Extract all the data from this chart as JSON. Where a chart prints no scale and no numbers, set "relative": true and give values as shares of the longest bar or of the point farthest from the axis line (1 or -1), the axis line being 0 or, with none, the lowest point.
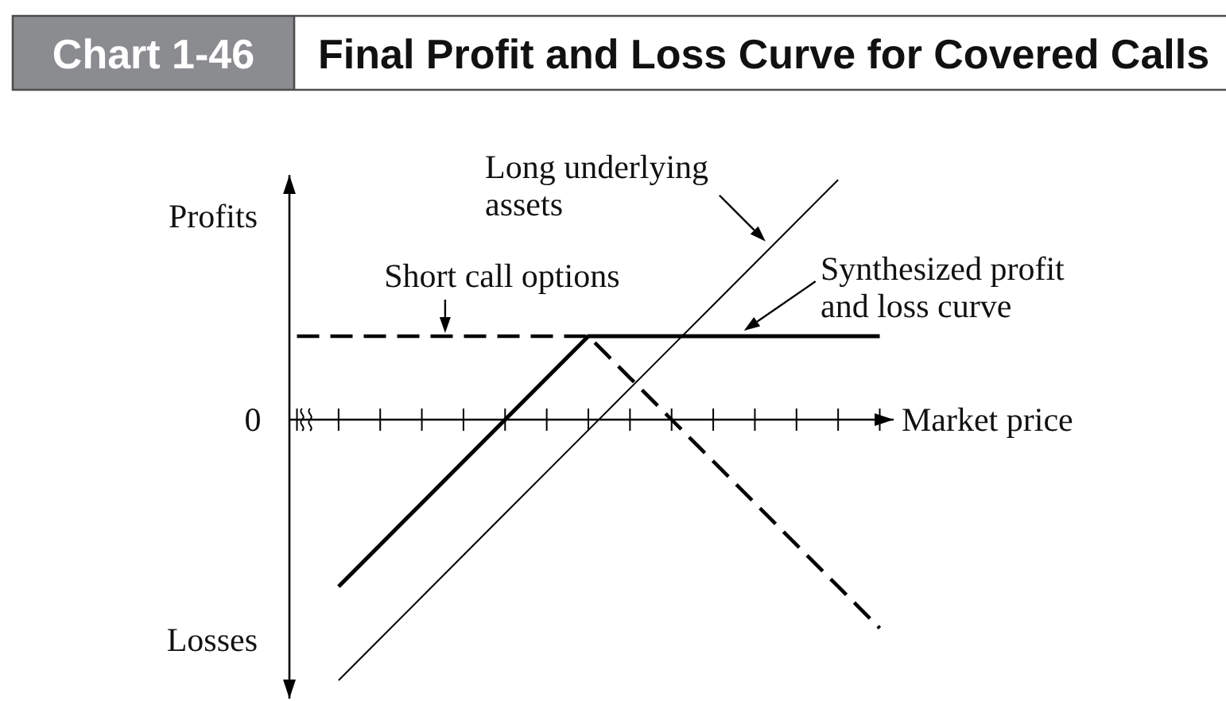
{
  "chart_data": {
    "type": "line",
    "title": "Final Profit and Loss Curve for Covered Calls",
    "xlabel": "Market price",
    "annotations": [
      "Chart 1-46",
      "Profits",
      "0",
      "Losses"
    ],
    "categories": [
      null,
      null,
      null,
      null,
      null,
      null,
      null,
      null,
      null,
      null,
      null,
      null,
      null,
      null,
      null
    ],
    "relative": true,
    "line_style": "solid",
    "series": [
      {
        "name": "Long underlying assets",
        "color": "#000000",
        "values": [
          null,
          -1,
          -0.84,
          -0.68,
          -0.52,
          -0.36,
          -0.2,
          -0.04,
          0.12,
          0.28,
          0.44,
          0.6,
          0.76,
          0.92,
          null
        ]
      },
      {
        "name": "Short call options",
        "color": "#000000",
        "line_style": "dashed",
        "values": [
          0.32,
          0.32,
          0.32,
          0.32,
          0.32,
          0.32,
          0.32,
          0.32,
          0.16,
          0,
          -0.16,
          -0.32,
          -0.48,
          -0.64,
          -0.8
        ]
      },
      {
        "name": "Synthesized profit and loss curve",
        "color": "#000000",
        "values": [
          null,
          -0.64,
          -0.48,
          -0.32,
          -0.16,
          0,
          0.16,
          0.32,
          0.32,
          0.32,
          0.32,
          0.32,
          0.32,
          0.32,
          0.32
        ]
      }
    ]
  }
}
